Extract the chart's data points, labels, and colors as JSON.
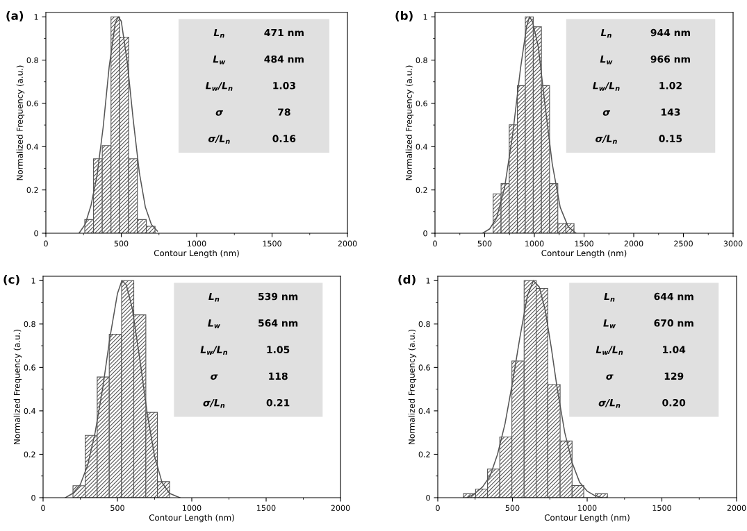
{
  "chart_data": [
    {
      "type": "histogram",
      "title": "(a)",
      "xlabel": "Contour Length (nm)",
      "ylabel": "Normalized Frequency (a.u.)",
      "bins": [
        258,
        316,
        374,
        432,
        490,
        549,
        607,
        666,
        724
      ],
      "values": [
        0.063,
        0.344,
        0.405,
        1.0,
        0.906,
        0.344,
        0.063,
        0.032
      ],
      "color": "#555555",
      "series": [
        {
          "type": "line",
          "color": "#555555",
          "x": [
            220,
            260,
            300,
            340,
            380,
            420,
            460,
            480,
            500,
            540,
            580,
            620,
            660,
            700,
            740
          ],
          "values": [
            0.0,
            0.04,
            0.13,
            0.27,
            0.49,
            0.77,
            0.97,
            1.0,
            0.98,
            0.79,
            0.52,
            0.28,
            0.12,
            0.04,
            0.01
          ]
        }
      ],
      "xlim": [
        0,
        2000
      ],
      "xticks": [
        0,
        500,
        1000,
        1500,
        2000
      ],
      "ylim": [
        0,
        1.02
      ],
      "yticks": [
        0,
        0.2,
        0.4,
        0.6,
        0.8,
        1
      ],
      "annotations": [
        "L$_{n}$",
        "471 nm",
        "L$_{w}$",
        "484 nm",
        "L$_{w}$/L$_{n}$",
        "1.03",
        "σ",
        "78",
        "σ/L$_{n}$",
        "0.16"
      ]
    },
    {
      "type": "histogram",
      "title": "(b)",
      "xlabel": "Contour Length (nm)",
      "ylabel": "Normalized Frequency (a.u.)",
      "bins": [
        585,
        665,
        747,
        829,
        909,
        989,
        1071,
        1153,
        1236,
        1317,
        1399
      ],
      "values": [
        0.182,
        0.229,
        0.501,
        0.682,
        1.0,
        0.954,
        0.682,
        0.229,
        0.045,
        0.045
      ],
      "color": "#555555",
      "series": [
        {
          "type": "line",
          "color": "#555555",
          "x": [
            480,
            550,
            620,
            700,
            780,
            860,
            920,
            950,
            980,
            1040,
            1100,
            1180,
            1260,
            1340,
            1420
          ],
          "values": [
            0.0,
            0.02,
            0.07,
            0.21,
            0.45,
            0.76,
            0.95,
            1.0,
            0.98,
            0.86,
            0.62,
            0.32,
            0.12,
            0.03,
            0.0
          ]
        }
      ],
      "xlim": [
        0,
        3000
      ],
      "xticks": [
        0,
        500,
        1000,
        1500,
        2000,
        2500,
        3000
      ],
      "ylim": [
        0,
        1.02
      ],
      "yticks": [
        0,
        0.2,
        0.4,
        0.6,
        0.8,
        1
      ],
      "annotations": [
        "L$_{n}$",
        "944 nm",
        "L$_{w}$",
        "966 nm",
        "L$_{w}$/L$_{n}$",
        "1.02",
        "σ",
        "143",
        "σ/L$_{n}$",
        "0.15"
      ]
    },
    {
      "type": "histogram",
      "title": "(c)",
      "xlabel": "Contour Length (nm)",
      "ylabel": "Normalized Frequency (a.u.)",
      "bins": [
        201,
        283,
        364,
        445,
        528,
        610,
        691,
        769,
        851
      ],
      "values": [
        0.055,
        0.287,
        0.556,
        0.753,
        1.0,
        0.842,
        0.393,
        0.074
      ],
      "color": "#555555",
      "series": [
        {
          "type": "line",
          "color": "#555555",
          "x": [
            150,
            200,
            250,
            300,
            350,
            400,
            450,
            500,
            530,
            560,
            600,
            650,
            700,
            750,
            800,
            850,
            920
          ],
          "values": [
            0.0,
            0.02,
            0.06,
            0.15,
            0.3,
            0.5,
            0.74,
            0.94,
            1.0,
            0.98,
            0.87,
            0.64,
            0.39,
            0.19,
            0.07,
            0.02,
            0.0
          ]
        }
      ],
      "xlim": [
        0,
        2000
      ],
      "xticks": [
        0,
        500,
        1000,
        1500,
        2000
      ],
      "ylim": [
        0,
        1.02
      ],
      "yticks": [
        0,
        0.2,
        0.4,
        0.6,
        0.8,
        1
      ],
      "annotations": [
        "L$_{n}$",
        "539 nm",
        "L$_{w}$",
        "564 nm",
        "L$_{w}$/L$_{n}$",
        "1.05",
        "σ",
        "118",
        "σ/L$_{n}$",
        "0.21"
      ]
    },
    {
      "type": "histogram",
      "title": "(d)",
      "xlabel": "Contour Length (nm)",
      "ylabel": "Normalized Frequency (a.u.)",
      "bins": [
        171,
        253,
        333,
        415,
        496,
        578,
        659,
        736,
        819,
        899,
        977,
        1054,
        1136
      ],
      "values": [
        0.018,
        0.039,
        0.132,
        0.28,
        0.63,
        1.0,
        0.964,
        0.521,
        0.261,
        0.056,
        0,
        0.018
      ],
      "color": "#555555",
      "series": [
        {
          "type": "line",
          "color": "#555555",
          "x": [
            200,
            250,
            300,
            350,
            400,
            450,
            500,
            550,
            600,
            640,
            680,
            720,
            760,
            800,
            850,
            900,
            950,
            1000,
            1050,
            1100
          ],
          "values": [
            0.0,
            0.02,
            0.05,
            0.1,
            0.2,
            0.34,
            0.53,
            0.74,
            0.93,
            1.0,
            0.97,
            0.86,
            0.69,
            0.5,
            0.3,
            0.16,
            0.07,
            0.03,
            0.01,
            0.0
          ]
        }
      ],
      "xlim": [
        0,
        2000
      ],
      "xticks": [
        0,
        500,
        1000,
        1500,
        2000
      ],
      "ylim": [
        0,
        1.02
      ],
      "yticks": [
        0,
        0.2,
        0.4,
        0.6,
        0.8,
        1
      ],
      "annotations": [
        "L$_{n}$",
        "644 nm",
        "L$_{w}$",
        "670 nm",
        "L$_{w}$/L$_{n}$",
        "1.04",
        "σ",
        "129",
        "σ/L$_{n}$",
        "0.20"
      ]
    }
  ]
}
